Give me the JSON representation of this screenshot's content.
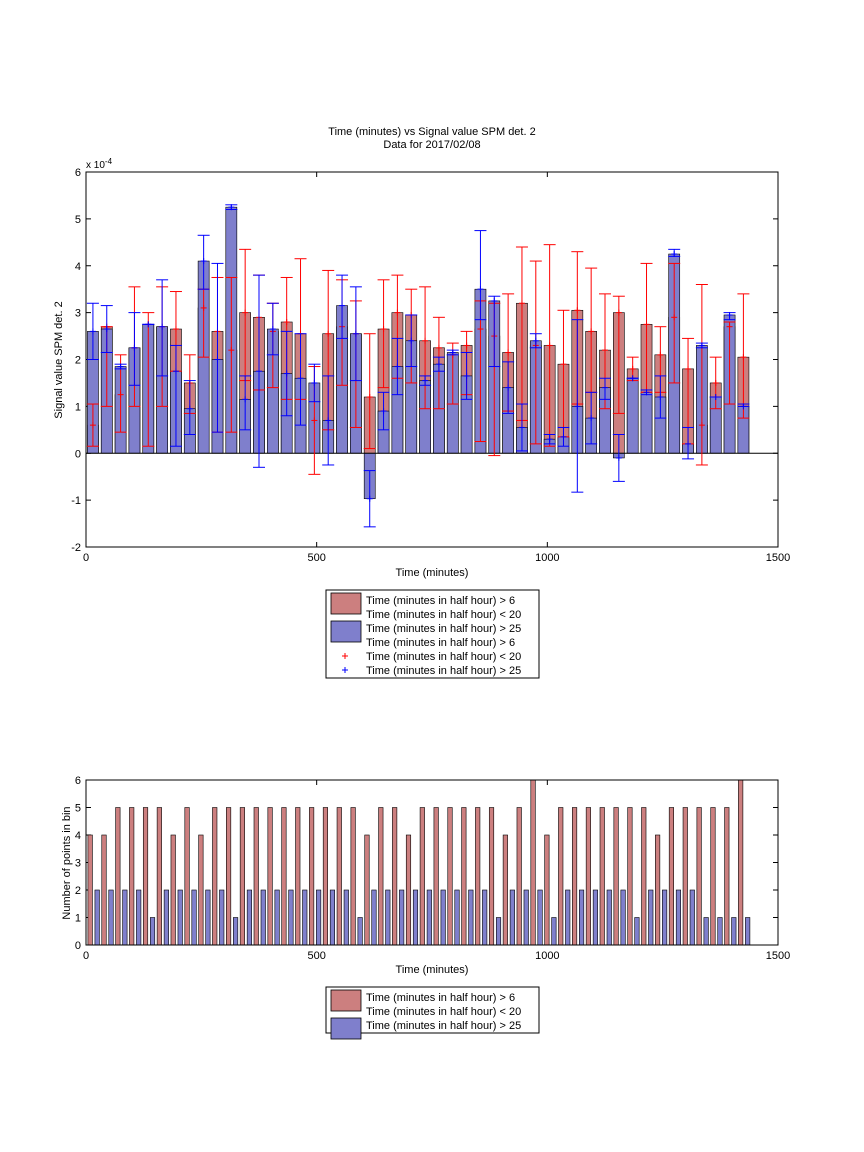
{
  "colors": {
    "red_fill": "#cc7f7f",
    "blue_fill": "#7f7fcc",
    "red_line": "#ff0000",
    "blue_line": "#0000ff"
  },
  "chart_data": [
    {
      "type": "bar",
      "title": "Time (minutes) vs Signal value SPM det. 2",
      "subtitle": "Data for 2017/02/08",
      "xlabel": "Time (minutes)",
      "ylabel": "Signal value SPM det. 2",
      "exponent_label": "x 10",
      "exponent_power": "-4",
      "xlim": [
        0,
        1500
      ],
      "ylim": [
        -2,
        6
      ],
      "xticks": [
        "0",
        "500",
        "1000",
        "1500"
      ],
      "yticks": [
        "-2",
        "-1",
        "0",
        "1",
        "2",
        "3",
        "4",
        "5",
        "6"
      ],
      "x": [
        15,
        45,
        75,
        105,
        135,
        165,
        195,
        225,
        255,
        285,
        315,
        345,
        375,
        405,
        435,
        465,
        495,
        525,
        555,
        585,
        615,
        645,
        675,
        705,
        735,
        765,
        795,
        825,
        855,
        885,
        915,
        945,
        975,
        1005,
        1035,
        1065,
        1095,
        1125,
        1155,
        1185,
        1215,
        1245,
        1275,
        1305,
        1335,
        1365,
        1395,
        1425
      ],
      "series": [
        {
          "name": "Time (minutes in half hour) > 6\nTime (minutes in half hour) < 20",
          "values": [
            0.6,
            2.7,
            1.25,
            2.25,
            2.75,
            2.7,
            2.65,
            1.5,
            3.1,
            2.6,
            2.2,
            3.0,
            2.9,
            2.6,
            2.8,
            2.55,
            0.7,
            2.55,
            2.7,
            2.55,
            1.2,
            2.65,
            3.0,
            2.95,
            2.4,
            2.25,
            2.1,
            2.3,
            2.65,
            2.5,
            2.15,
            3.2,
            2.3,
            2.3,
            1.9,
            3.05,
            2.6,
            2.2,
            3.0,
            1.8,
            2.75,
            2.1,
            2.9,
            1.8,
            0.6,
            1.5,
            2.7,
            2.05
          ],
          "err_low": [
            0.15,
            1.0,
            0.45,
            1.0,
            0.15,
            1.0,
            1.75,
            0.85,
            2.05,
            0.45,
            0.45,
            1.55,
            1.35,
            1.4,
            1.15,
            1.15,
            -0.45,
            0.5,
            1.45,
            0.55,
            0.1,
            1.4,
            1.6,
            1.5,
            0.95,
            0.95,
            1.05,
            1.25,
            0.25,
            -0.05,
            0.9,
            0.7,
            0.2,
            0.15,
            0.35,
            1.05,
            1.3,
            0.95,
            0.85,
            1.55,
            1.3,
            1.3,
            1.5,
            0.2,
            -0.25,
            0.95,
            1.05,
            0.75
          ],
          "err_high": [
            1.05,
            2.7,
            2.1,
            3.55,
            3.0,
            3.55,
            3.45,
            2.1,
            3.5,
            3.75,
            3.75,
            4.35,
            3.8,
            3.2,
            3.75,
            4.15,
            1.85,
            3.9,
            3.7,
            3.25,
            2.55,
            3.7,
            3.8,
            3.5,
            3.55,
            2.9,
            2.35,
            2.6,
            3.25,
            3.2,
            3.4,
            4.4,
            4.1,
            4.45,
            3.05,
            4.3,
            3.95,
            3.4,
            3.35,
            2.05,
            4.05,
            2.7,
            4.05,
            2.45,
            3.6,
            2.05,
            2.8,
            3.4
          ]
        },
        {
          "name": "Time (minutes in half hour) > 25",
          "values": [
            2.6,
            2.65,
            1.85,
            2.25,
            2.75,
            2.7,
            1.75,
            0.95,
            4.1,
            2.0,
            5.25,
            1.15,
            1.75,
            2.65,
            1.7,
            1.6,
            1.5,
            0.7,
            3.15,
            2.55,
            -0.97,
            0.9,
            1.85,
            2.4,
            1.55,
            1.9,
            2.15,
            1.65,
            3.5,
            3.25,
            1.4,
            0.55,
            2.4,
            0.3,
            0.35,
            1.0,
            0.75,
            1.4,
            -0.1,
            1.6,
            1.3,
            1.2,
            4.25,
            0.2,
            2.3,
            1.2,
            2.95,
            1.0
          ],
          "err_low": [
            2.0,
            2.15,
            1.8,
            1.45,
            2.75,
            1.65,
            0.15,
            0.4,
            3.5,
            0.45,
            5.2,
            0.5,
            -0.3,
            2.1,
            0.8,
            0.6,
            1.1,
            -0.25,
            2.45,
            1.55,
            -1.57,
            0.5,
            1.25,
            1.85,
            1.45,
            1.75,
            2.1,
            1.15,
            2.85,
            1.85,
            0.85,
            0.05,
            2.25,
            0.2,
            0.15,
            -0.83,
            0.2,
            1.15,
            -0.6,
            1.6,
            1.25,
            0.75,
            4.2,
            -0.12,
            2.25,
            1.2,
            2.85,
            1.0
          ],
          "err_high": [
            3.2,
            3.15,
            1.9,
            3.0,
            2.75,
            3.7,
            2.3,
            1.55,
            4.65,
            4.05,
            5.3,
            1.65,
            3.8,
            3.2,
            2.6,
            2.55,
            1.9,
            1.65,
            3.8,
            3.55,
            -0.37,
            1.3,
            2.45,
            2.95,
            1.65,
            2.05,
            2.2,
            2.15,
            4.75,
            3.35,
            1.95,
            1.05,
            2.55,
            0.4,
            0.55,
            2.85,
            1.3,
            1.6,
            0.4,
            1.6,
            1.35,
            1.65,
            4.35,
            0.55,
            2.35,
            1.2,
            3.0,
            1.05
          ]
        }
      ],
      "legend": {
        "placement": "below",
        "entries": [
          {
            "text": "Time (minutes in half hour) > 6",
            "marker": "red-patch"
          },
          {
            "text": "Time (minutes in half hour) < 20",
            "marker": "none"
          },
          {
            "text": "Time (minutes in half hour) > 25",
            "marker": "blue-patch"
          },
          {
            "text": "Time (minutes in half hour) > 6",
            "marker": "none"
          },
          {
            "text": "Time (minutes in half hour) < 20",
            "marker": "red-plus"
          },
          {
            "text": "Time (minutes in half hour) > 25",
            "marker": "blue-plus"
          }
        ]
      }
    },
    {
      "type": "bar",
      "title": "",
      "xlabel": "Time (minutes)",
      "ylabel": "Number of points in bin",
      "xlim": [
        0,
        1500
      ],
      "ylim": [
        0,
        6
      ],
      "xticks": [
        "0",
        "500",
        "1000",
        "1500"
      ],
      "yticks": [
        "0",
        "1",
        "2",
        "3",
        "4",
        "5",
        "6"
      ],
      "x": [
        15,
        45,
        75,
        105,
        135,
        165,
        195,
        225,
        255,
        285,
        315,
        345,
        375,
        405,
        435,
        465,
        495,
        525,
        555,
        585,
        615,
        645,
        675,
        705,
        735,
        765,
        795,
        825,
        855,
        885,
        915,
        945,
        975,
        1005,
        1035,
        1065,
        1095,
        1125,
        1155,
        1185,
        1215,
        1245,
        1275,
        1305,
        1335,
        1365,
        1395,
        1425
      ],
      "series": [
        {
          "name": "Time (minutes in half hour) > 6\nTime (minutes in half hour) < 20",
          "values": [
            4,
            4,
            5,
            5,
            5,
            5,
            4,
            5,
            4,
            5,
            5,
            5,
            5,
            5,
            5,
            5,
            5,
            5,
            5,
            5,
            4,
            5,
            5,
            4,
            5,
            5,
            5,
            5,
            5,
            5,
            4,
            5,
            6,
            4,
            5,
            5,
            5,
            5,
            5,
            5,
            5,
            4,
            5,
            5,
            5,
            5,
            5,
            6
          ]
        },
        {
          "name": "Time (minutes in half hour) > 25",
          "values": [
            2,
            2,
            2,
            2,
            1,
            2,
            2,
            2,
            2,
            2,
            1,
            2,
            2,
            2,
            2,
            2,
            2,
            2,
            2,
            1,
            2,
            2,
            2,
            2,
            2,
            2,
            2,
            2,
            2,
            1,
            2,
            2,
            2,
            1,
            2,
            2,
            2,
            2,
            2,
            1,
            2,
            2,
            2,
            2,
            1,
            1,
            1,
            1
          ]
        }
      ],
      "legend": {
        "placement": "below",
        "entries": [
          {
            "text": "Time (minutes in half hour) > 6",
            "marker": "red-patch"
          },
          {
            "text": "Time (minutes in half hour) < 20",
            "marker": "none"
          },
          {
            "text": "Time (minutes in half hour) > 25",
            "marker": "blue-patch"
          }
        ]
      }
    }
  ]
}
